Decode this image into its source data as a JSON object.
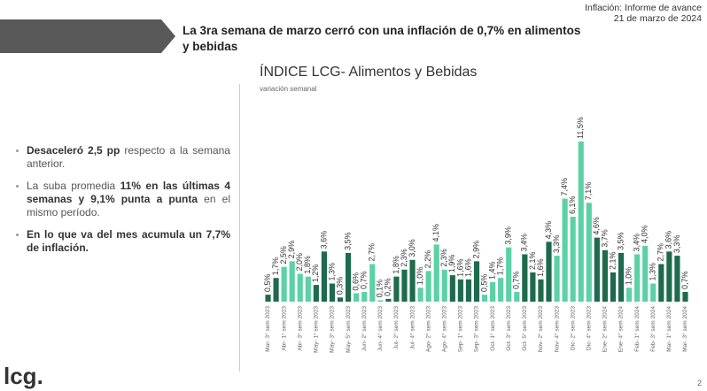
{
  "header": {
    "title": "La 3ra semana de marzo cerró con una inflación de 0,7% en alimentos y bebidas",
    "report": "Inflación: Informe de avance",
    "date": "21 de marzo de 2024"
  },
  "bullets": [
    [
      {
        "text": "Desaceleró 2,5 pp",
        "bold": true
      },
      {
        "text": " respecto a la semana anterior.",
        "bold": false
      }
    ],
    [
      {
        "text": "La suba promedia ",
        "bold": false
      },
      {
        "text": "11% en las últimas 4 semanas y 9,1% punta a punta",
        "bold": true
      },
      {
        "text": " en el mismo período.",
        "bold": false
      }
    ],
    [
      {
        "text": "En lo que va del mes acumula un 7,7% de inflación.",
        "bold": true
      }
    ]
  ],
  "footer": {
    "logo": "lcg.",
    "page": "2"
  },
  "chart_data": {
    "type": "bar",
    "title": "ÍNDICE LCG- Alimentos y Bebidas",
    "subtitle": "variación semanal",
    "categories": [
      "Mar- 3° sem 2023",
      null,
      "Abr- 1° sem 2023",
      null,
      "Abr- 3° sem 2023",
      null,
      "May- 1° sem 2023",
      null,
      "May- 3° sem 2023",
      null,
      "May- 5° sem 2023",
      null,
      "Jun- 2° sem 2023",
      null,
      "Jun- 4° sem 2023",
      null,
      "Jul- 2° sem 2023",
      null,
      "Jul- 4° sem 2023",
      null,
      "Ago- 2° sem 2023",
      null,
      "Ago- 4° sem 2023",
      null,
      "Sep- 1° sem 2023",
      null,
      "Sep- 3° sem 2023",
      null,
      "Oct- 1° sem 2023",
      null,
      "Oct- 3° sem 2023",
      null,
      "Oct- 5° sem 2023",
      null,
      "Nov- 2° sem 2023",
      null,
      "Nov- 4° sem 2023",
      null,
      "Dic- 2° sem 2023",
      null,
      "Dic- 4° sem 2023",
      null,
      "Ene- 2° sem 2024",
      null,
      "Ene- 4° sem 2024",
      null,
      "Feb- 1° sem 2024",
      null,
      "Feb- 3° sem 2024",
      null,
      "Mar- 1° sem 2024",
      null,
      "Mar- 3° sem 2024"
    ],
    "values": [
      0.5,
      1.7,
      2.5,
      2.9,
      2.0,
      1.8,
      1.2,
      3.6,
      1.3,
      0.3,
      3.5,
      0.6,
      0.7,
      2.7,
      0.1,
      0.2,
      1.8,
      2.3,
      3.0,
      1.0,
      2.2,
      4.1,
      2.3,
      1.9,
      1.6,
      1.6,
      2.9,
      0.5,
      1.4,
      1.7,
      3.9,
      0.7,
      3.4,
      2.1,
      1.6,
      4.3,
      3.3,
      7.4,
      6.1,
      11.5,
      7.1,
      4.6,
      3.7,
      2.1,
      3.5,
      1.0,
      3.4,
      4.0,
      1.3,
      2.7,
      3.6,
      3.3,
      0.7
    ],
    "value_labels": [
      "0,5%",
      "1,7%",
      "2,5%",
      "2,9%",
      "2,0%",
      "1,8%",
      "1,2%",
      "3,6%",
      "1,3%",
      "0,3%",
      "3,5%",
      "0,6%",
      "0,7%",
      "2,7%",
      "0,1%",
      "0,2%",
      "1,8%",
      "2,3%",
      "3,0%",
      "1,0%",
      "2,2%",
      "4,1%",
      "2,3%",
      "1,9%",
      "1,6%",
      "1,6%",
      "2,9%",
      "0,5%",
      "1,4%",
      "1,7%",
      "3,9%",
      "0,7%",
      "3,4%",
      "2,1%",
      "1,6%",
      "4,3%",
      "3,3%",
      "7,4%",
      "6,1%",
      "11,5%",
      "7,1%",
      "4,6%",
      "3,7%",
      "2,1%",
      "3,5%",
      "1,0%",
      "3,4%",
      "4,0%",
      "1,3%",
      "2,7%",
      "3,6%",
      "3,3%",
      "0,7%"
    ],
    "colors": [
      "#1d6b4c",
      "#1d6b4c",
      "#5dd1a6",
      "#5dd1a6",
      "#5dd1a6",
      "#5dd1a6",
      "#1d6b4c",
      "#1d6b4c",
      "#1d6b4c",
      "#1d6b4c",
      "#1d6b4c",
      "#5dd1a6",
      "#5dd1a6",
      "#5dd1a6",
      "#5dd1a6",
      "#1d6b4c",
      "#1d6b4c",
      "#1d6b4c",
      "#1d6b4c",
      "#5dd1a6",
      "#5dd1a6",
      "#5dd1a6",
      "#5dd1a6",
      "#1d6b4c",
      "#1d6b4c",
      "#1d6b4c",
      "#1d6b4c",
      "#5dd1a6",
      "#5dd1a6",
      "#5dd1a6",
      "#5dd1a6",
      "#5dd1a6",
      "#1d6b4c",
      "#1d6b4c",
      "#1d6b4c",
      "#1d6b4c",
      "#5dd1a6",
      "#5dd1a6",
      "#5dd1a6",
      "#5dd1a6",
      "#5dd1a6",
      "#1d6b4c",
      "#1d6b4c",
      "#1d6b4c",
      "#1d6b4c",
      "#5dd1a6",
      "#5dd1a6",
      "#5dd1a6",
      "#5dd1a6",
      "#1d6b4c",
      "#1d6b4c",
      "#1d6b4c",
      "#1d6b4c"
    ]
  }
}
